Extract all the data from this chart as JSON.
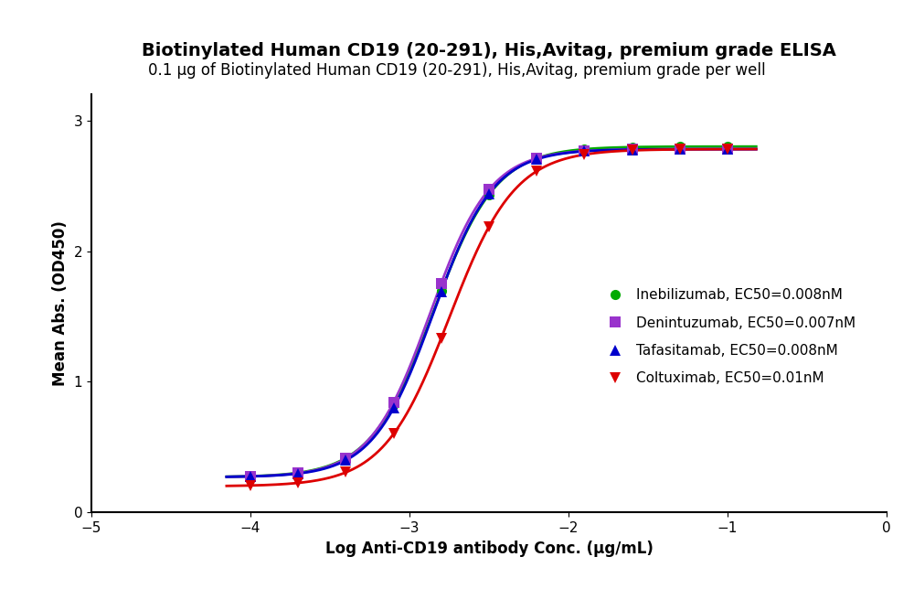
{
  "title": "Biotinylated Human CD19 (20-291), His,Avitag, premium grade ELISA",
  "subtitle": "0.1 μg of Biotinylated Human CD19 (20-291), His,Avitag, premium grade per well",
  "xlabel": "Log Anti-CD19 antibody Conc. (μg/mL)",
  "ylabel": "Mean Abs. (OD450)",
  "xlim": [
    -5,
    0
  ],
  "ylim": [
    0,
    3.2
  ],
  "xticks": [
    -5,
    -4,
    -3,
    -2,
    -1,
    0
  ],
  "yticks": [
    0,
    1,
    2,
    3
  ],
  "series": [
    {
      "name": "Inebilizumab, EC50=0.008nM",
      "color": "#00aa00",
      "marker": "o",
      "marker_size": 8,
      "ec50_log": -2.85,
      "bottom": 0.27,
      "top": 2.8,
      "hill": 2.2
    },
    {
      "name": "Denintuzumab, EC50=0.007nM",
      "color": "#9933cc",
      "marker": "s",
      "marker_size": 8,
      "ec50_log": -2.87,
      "bottom": 0.27,
      "top": 2.78,
      "hill": 2.3
    },
    {
      "name": "Tafasitamab, EC50=0.008nM",
      "color": "#0000cc",
      "marker": "^",
      "marker_size": 8,
      "ec50_log": -2.85,
      "bottom": 0.27,
      "top": 2.78,
      "hill": 2.3
    },
    {
      "name": "Coltuximab, EC50=0.01nM",
      "color": "#dd0000",
      "marker": "v",
      "marker_size": 8,
      "ec50_log": -2.75,
      "bottom": 0.2,
      "top": 2.78,
      "hill": 2.1
    }
  ],
  "x_data_points": [
    -4.0,
    -3.7,
    -3.4,
    -3.1,
    -2.8,
    -2.5,
    -2.2,
    -1.9,
    -1.6,
    -1.3,
    -1.0
  ],
  "background_color": "#ffffff",
  "title_fontsize": 14,
  "subtitle_fontsize": 12,
  "axis_label_fontsize": 12,
  "tick_fontsize": 11,
  "legend_fontsize": 11,
  "linewidth": 2.0
}
